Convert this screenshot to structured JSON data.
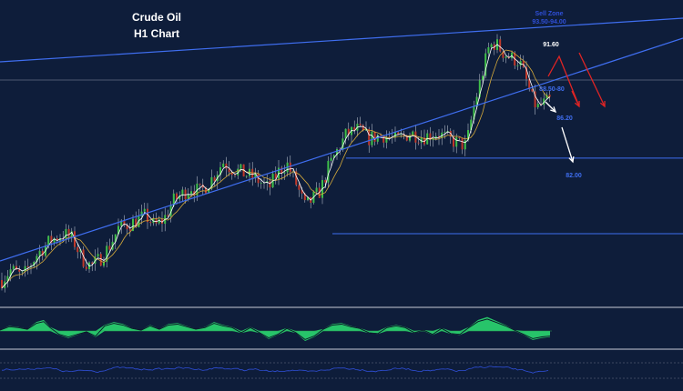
{
  "chart_data": {
    "type": "candlestick",
    "title": "Crude Oil",
    "subtitle": "H1 Chart",
    "levels_text": [
      "91.60",
      "88.50-80",
      "86.20",
      "82.00"
    ],
    "level_values": [
      91.6,
      88.5,
      86.2,
      82.0
    ],
    "top_zone_label": "Sell Zone",
    "top_zone_sublabel": "93.50-94.00",
    "price_path": [
      [
        0,
        79.3
      ],
      [
        12,
        80.0
      ],
      [
        25,
        79.6
      ],
      [
        40,
        80.8
      ],
      [
        55,
        81.6
      ],
      [
        70,
        82.0
      ],
      [
        80,
        81.7
      ],
      [
        90,
        80.6
      ],
      [
        100,
        80.2
      ],
      [
        110,
        80.6
      ],
      [
        120,
        81.3
      ],
      [
        130,
        82.3
      ],
      [
        145,
        82.6
      ],
      [
        160,
        83.0
      ],
      [
        170,
        82.4
      ],
      [
        180,
        82.8
      ],
      [
        190,
        83.8
      ],
      [
        200,
        84.2
      ],
      [
        210,
        84.6
      ],
      [
        220,
        84.3
      ],
      [
        235,
        85.2
      ],
      [
        245,
        86.0
      ],
      [
        255,
        85.6
      ],
      [
        265,
        85.4
      ],
      [
        280,
        85.1
      ],
      [
        295,
        84.5
      ],
      [
        305,
        85.4
      ],
      [
        315,
        85.9
      ],
      [
        325,
        84.8
      ],
      [
        335,
        83.5
      ],
      [
        345,
        84.0
      ],
      [
        352,
        84.4
      ],
      [
        360,
        85.6
      ],
      [
        370,
        86.6
      ],
      [
        380,
        87.5
      ],
      [
        392,
        87.8
      ],
      [
        405,
        87.3
      ],
      [
        420,
        87.5
      ],
      [
        435,
        87.2
      ],
      [
        450,
        87.6
      ],
      [
        465,
        87.4
      ],
      [
        480,
        87.6
      ],
      [
        495,
        87.2
      ],
      [
        505,
        87.0
      ],
      [
        512,
        86.9
      ],
      [
        518,
        88.5
      ],
      [
        524,
        89.8
      ],
      [
        530,
        91.0
      ],
      [
        537,
        92.4
      ],
      [
        544,
        92.6
      ],
      [
        552,
        92.1
      ],
      [
        560,
        91.8
      ],
      [
        570,
        91.6
      ],
      [
        578,
        90.5
      ],
      [
        584,
        89.5
      ],
      [
        590,
        89.0
      ],
      [
        596,
        89.2
      ],
      [
        603,
        89.4
      ]
    ],
    "oscillator": [
      [
        0,
        0.05
      ],
      [
        10,
        0.25
      ],
      [
        20,
        0.2
      ],
      [
        30,
        0.1
      ],
      [
        40,
        0.45
      ],
      [
        48,
        0.55
      ],
      [
        55,
        0.2
      ],
      [
        65,
        -0.2
      ],
      [
        75,
        -0.35
      ],
      [
        85,
        -0.2
      ],
      [
        95,
        -0.05
      ],
      [
        105,
        -0.3
      ],
      [
        115,
        0.3
      ],
      [
        125,
        0.45
      ],
      [
        135,
        0.35
      ],
      [
        145,
        0.15
      ],
      [
        155,
        0.05
      ],
      [
        165,
        0.3
      ],
      [
        175,
        0.1
      ],
      [
        185,
        0.35
      ],
      [
        195,
        0.4
      ],
      [
        205,
        0.25
      ],
      [
        215,
        0.1
      ],
      [
        225,
        0.2
      ],
      [
        235,
        0.45
      ],
      [
        245,
        0.3
      ],
      [
        255,
        0.2
      ],
      [
        265,
        -0.1
      ],
      [
        275,
        0.2
      ],
      [
        285,
        -0.1
      ],
      [
        295,
        -0.4
      ],
      [
        305,
        -0.2
      ],
      [
        315,
        0.15
      ],
      [
        325,
        -0.1
      ],
      [
        335,
        -0.5
      ],
      [
        345,
        -0.3
      ],
      [
        355,
        0.1
      ],
      [
        365,
        0.35
      ],
      [
        375,
        0.4
      ],
      [
        385,
        0.25
      ],
      [
        395,
        0.15
      ],
      [
        405,
        -0.1
      ],
      [
        415,
        -0.15
      ],
      [
        425,
        0.2
      ],
      [
        435,
        0.3
      ],
      [
        445,
        0.2
      ],
      [
        455,
        -0.1
      ],
      [
        465,
        0.05
      ],
      [
        475,
        -0.2
      ],
      [
        485,
        0.15
      ],
      [
        495,
        -0.15
      ],
      [
        505,
        -0.2
      ],
      [
        515,
        0.2
      ],
      [
        525,
        0.55
      ],
      [
        535,
        0.7
      ],
      [
        545,
        0.5
      ],
      [
        555,
        0.3
      ],
      [
        565,
        0.05
      ],
      [
        575,
        -0.2
      ],
      [
        585,
        -0.45
      ],
      [
        595,
        -0.35
      ],
      [
        604,
        -0.3
      ]
    ],
    "y_range": [
      78,
      95
    ],
    "colors": {
      "background": "#0e1d3a",
      "trendline": "#3f6ef0",
      "level_line": "#3f6ef0",
      "bull_candle": "#3fbf4a",
      "bear_candle": "#c0392b",
      "ma_fast": "#ffffff",
      "ma_slow": "#d4a93a",
      "oscillator_fill": "#27c46a",
      "rsi_line": "#2f4fd8",
      "red_arrow": "#e02424",
      "white_arrow": "#ffffff",
      "label_blue": "#3f6ef0",
      "zone_label": "#2f4fd8"
    }
  }
}
